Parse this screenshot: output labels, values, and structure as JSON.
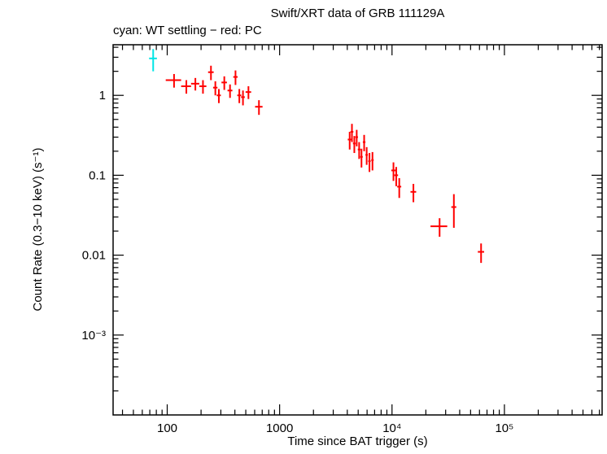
{
  "chart_data": {
    "type": "scatter",
    "title": "Swift/XRT data of GRB 111129A",
    "legend_text": "cyan: WT settling − red: PC",
    "xlabel": "Time since BAT trigger (s)",
    "ylabel": "Count Rate (0.3−10 keV) (s⁻¹)",
    "x_scale": "log",
    "y_scale": "log",
    "xlim": [
      33,
      740000
    ],
    "ylim": [
      0.0001,
      4.3
    ],
    "grid": false,
    "x_ticks": [
      {
        "value": 100,
        "label": "100"
      },
      {
        "value": 1000,
        "label": "1000"
      },
      {
        "value": 10000,
        "label": "10⁴"
      },
      {
        "value": 100000,
        "label": "10⁵"
      }
    ],
    "y_ticks": [
      {
        "value": 1,
        "label": "1"
      },
      {
        "value": 0.1,
        "label": "0.1"
      },
      {
        "value": 0.01,
        "label": "0.01"
      },
      {
        "value": 0.001,
        "label": "10⁻³"
      }
    ],
    "series": [
      {
        "name": "WT settling",
        "color": "#00e5e5",
        "marker": "error-cross",
        "points": [
          {
            "t": 75,
            "dt": 6,
            "r": 2.9,
            "dr": 0.9
          }
        ]
      },
      {
        "name": "PC",
        "color": "#ff0000",
        "marker": "error-cross",
        "points": [
          {
            "t": 115,
            "dt": 18,
            "r": 1.55,
            "dr": 0.3
          },
          {
            "t": 148,
            "dt": 15,
            "r": 1.3,
            "dr": 0.25
          },
          {
            "t": 178,
            "dt": 15,
            "r": 1.4,
            "dr": 0.25
          },
          {
            "t": 208,
            "dt": 15,
            "r": 1.3,
            "dr": 0.25
          },
          {
            "t": 245,
            "dt": 14,
            "r": 1.95,
            "dr": 0.4
          },
          {
            "t": 268,
            "dt": 12,
            "r": 1.25,
            "dr": 0.25
          },
          {
            "t": 288,
            "dt": 12,
            "r": 1.0,
            "dr": 0.2
          },
          {
            "t": 322,
            "dt": 18,
            "r": 1.45,
            "dr": 0.28
          },
          {
            "t": 362,
            "dt": 18,
            "r": 1.15,
            "dr": 0.22
          },
          {
            "t": 405,
            "dt": 18,
            "r": 1.7,
            "dr": 0.35
          },
          {
            "t": 438,
            "dt": 18,
            "r": 1.0,
            "dr": 0.2
          },
          {
            "t": 472,
            "dt": 18,
            "r": 0.95,
            "dr": 0.2
          },
          {
            "t": 528,
            "dt": 30,
            "r": 1.1,
            "dr": 0.2
          },
          {
            "t": 655,
            "dt": 50,
            "r": 0.72,
            "dr": 0.15
          },
          {
            "t": 4200,
            "dt": 160,
            "r": 0.28,
            "dr": 0.07
          },
          {
            "t": 4400,
            "dt": 130,
            "r": 0.35,
            "dr": 0.09
          },
          {
            "t": 4620,
            "dt": 130,
            "r": 0.25,
            "dr": 0.06
          },
          {
            "t": 4850,
            "dt": 130,
            "r": 0.3,
            "dr": 0.07
          },
          {
            "t": 5100,
            "dt": 140,
            "r": 0.21,
            "dr": 0.05
          },
          {
            "t": 5350,
            "dt": 140,
            "r": 0.17,
            "dr": 0.045
          },
          {
            "t": 5650,
            "dt": 150,
            "r": 0.26,
            "dr": 0.06
          },
          {
            "t": 5950,
            "dt": 150,
            "r": 0.18,
            "dr": 0.045
          },
          {
            "t": 6300,
            "dt": 160,
            "r": 0.15,
            "dr": 0.04
          },
          {
            "t": 6700,
            "dt": 170,
            "r": 0.155,
            "dr": 0.04
          },
          {
            "t": 10300,
            "dt": 450,
            "r": 0.115,
            "dr": 0.03
          },
          {
            "t": 10900,
            "dt": 420,
            "r": 0.1,
            "dr": 0.027
          },
          {
            "t": 11600,
            "dt": 480,
            "r": 0.072,
            "dr": 0.02
          },
          {
            "t": 15500,
            "dt": 900,
            "r": 0.062,
            "dr": 0.016
          },
          {
            "t": 26500,
            "dt": 4500,
            "r": 0.023,
            "dr": 0.006
          },
          {
            "t": 35500,
            "dt": 1800,
            "r": 0.04,
            "dr": 0.018
          },
          {
            "t": 62000,
            "dt": 4000,
            "r": 0.011,
            "dr": 0.003
          }
        ]
      }
    ]
  }
}
